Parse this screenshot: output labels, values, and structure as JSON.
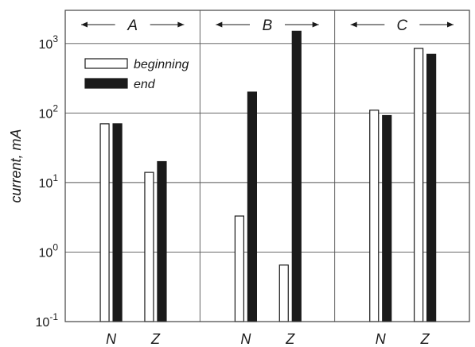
{
  "chart_data": {
    "type": "bar",
    "y_scale": "log",
    "ylim": [
      0.1,
      3000
    ],
    "ylabel": "current, mA",
    "y_ticks": [
      {
        "value": 0.1,
        "base": "10",
        "exp": "-1"
      },
      {
        "value": 1,
        "base": "10",
        "exp": "0"
      },
      {
        "value": 10,
        "base": "10",
        "exp": "1"
      },
      {
        "value": 100,
        "base": "10",
        "exp": "2"
      },
      {
        "value": 1000,
        "base": "10",
        "exp": "3"
      }
    ],
    "grid": true,
    "legend_position": "top-left",
    "series": [
      {
        "name": "beginning",
        "fill": "#ffffff"
      },
      {
        "name": "end",
        "fill": "#1a1a1a"
      }
    ],
    "groups": [
      {
        "label": "A",
        "categories": [
          {
            "label": "N",
            "values": [
              70,
              70
            ]
          },
          {
            "label": "Z",
            "values": [
              14,
              20
            ]
          }
        ]
      },
      {
        "label": "B",
        "categories": [
          {
            "label": "N",
            "values": [
              3.3,
              200
            ]
          },
          {
            "label": "Z",
            "values": [
              0.65,
              1500
            ]
          }
        ]
      },
      {
        "label": "C",
        "categories": [
          {
            "label": "N",
            "values": [
              110,
              92
            ]
          },
          {
            "label": "Z",
            "values": [
              850,
              700
            ]
          }
        ]
      }
    ]
  }
}
